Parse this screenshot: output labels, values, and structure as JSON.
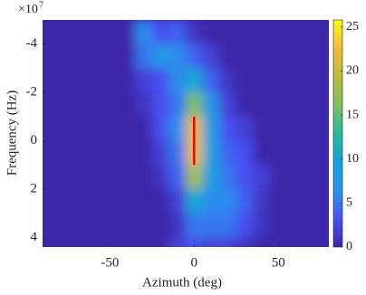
{
  "chart_data": {
    "type": "heatmap",
    "x_label": "Azimuth (deg)",
    "y_label": "Frequency (Hz)",
    "y_multiplier": "×10",
    "y_multiplier_exponent": "7",
    "x": [
      -90,
      -80,
      -70,
      -60,
      -50,
      -40,
      -30,
      -20,
      -10,
      0,
      10,
      20,
      30,
      40,
      50,
      60,
      70,
      80
    ],
    "y": [
      -4.5,
      -3.5,
      -2.5,
      -1.5,
      -0.5,
      0.5,
      1.5,
      2.5,
      3.5,
      4.5
    ],
    "z": [
      [
        0,
        0,
        0,
        0,
        0,
        0,
        6,
        3,
        4,
        1,
        0,
        0,
        0,
        0,
        0,
        0,
        0,
        0
      ],
      [
        0,
        0,
        0,
        0,
        0,
        0,
        5,
        7,
        6,
        4,
        2,
        0,
        0,
        0,
        0,
        0,
        0,
        0
      ],
      [
        0,
        0,
        0,
        0,
        0,
        0,
        2,
        3,
        6,
        10,
        4,
        1,
        0,
        0,
        0,
        0,
        0,
        0
      ],
      [
        0,
        0,
        0,
        0,
        0,
        0,
        1,
        3,
        5,
        16,
        7,
        2,
        0,
        0,
        0,
        0,
        0,
        0
      ],
      [
        0,
        0,
        0,
        0,
        0,
        0,
        0,
        3,
        6,
        22,
        8,
        3,
        2,
        0,
        0,
        0,
        0,
        0
      ],
      [
        0,
        0,
        0,
        0,
        0,
        0,
        0,
        2,
        5,
        22,
        9,
        4,
        3,
        0,
        0,
        0,
        0,
        0
      ],
      [
        0,
        0,
        0,
        0,
        0,
        0,
        0,
        1,
        4,
        18,
        8,
        5,
        3,
        2,
        0,
        0,
        0,
        0
      ],
      [
        0,
        0,
        0,
        0,
        0,
        0,
        0,
        0,
        2,
        10,
        6,
        6,
        4,
        1,
        0,
        0,
        0,
        0
      ],
      [
        0,
        0,
        0,
        0,
        0,
        0,
        0,
        0,
        1,
        5,
        5,
        5,
        3,
        1,
        0,
        0,
        0,
        0
      ],
      [
        0,
        0,
        0,
        0,
        0,
        0,
        0,
        0,
        2,
        3,
        2,
        2,
        1,
        0,
        0,
        0,
        0,
        0
      ]
    ],
    "xlim": [
      -90,
      80
    ],
    "ylim": [
      -5,
      4.4
    ],
    "y_reversed": true,
    "xticks": [
      -50,
      0,
      50
    ],
    "yticks": [
      -4,
      -2,
      0,
      2,
      4
    ],
    "clim": [
      0,
      25.8
    ],
    "cticks": [
      0,
      5,
      10,
      15,
      20,
      25
    ],
    "colormap": [
      "#3e26a8",
      "#4852f4",
      "#2796eb",
      "#12a4da",
      "#24bb9b",
      "#81bf63",
      "#bbbc3a",
      "#f6ba3c",
      "#f9fb0e"
    ],
    "marker": {
      "x": [
        0,
        0
      ],
      "y": [
        -1,
        1
      ],
      "color": "#ff0000"
    }
  }
}
